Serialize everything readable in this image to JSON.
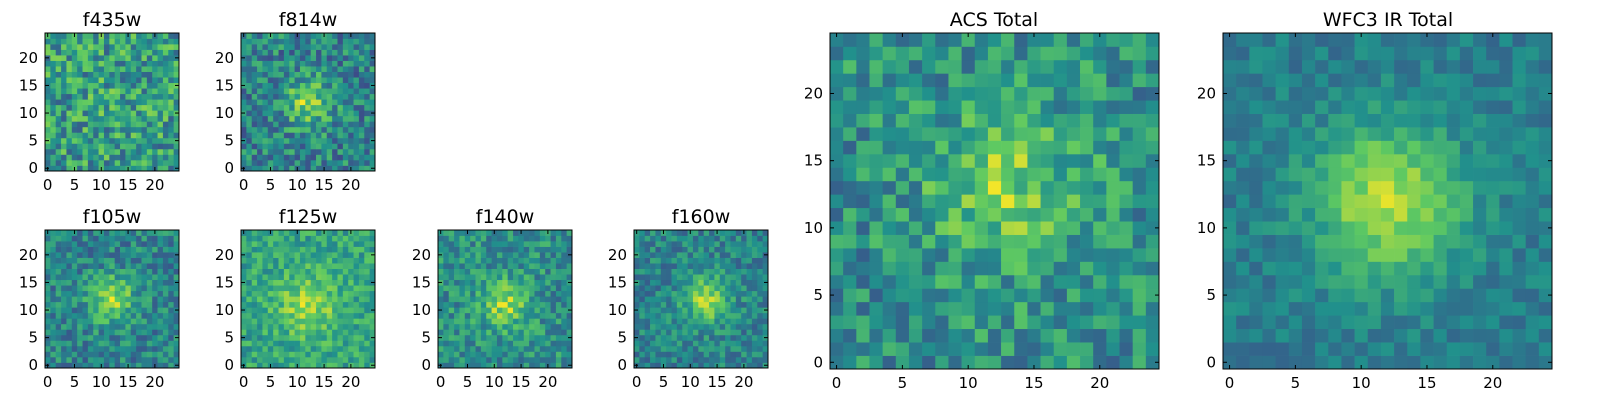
{
  "figure": {
    "background": "#ffffff"
  },
  "colormap": {
    "name": "viridis",
    "stops": [
      "#440154",
      "#3b528b",
      "#21918c",
      "#5ec962",
      "#fde725"
    ]
  },
  "chart_data": [
    {
      "type": "heatmap",
      "title": "f435w",
      "grid": [
        25,
        25
      ],
      "xlim": [
        0,
        24
      ],
      "ylim": [
        0,
        24
      ],
      "xticks": [
        0,
        5,
        10,
        15,
        20
      ],
      "yticks": [
        0,
        5,
        10,
        15,
        20
      ],
      "xtick_labels": [
        "0",
        "5",
        "10",
        "15",
        "20"
      ],
      "ytick_labels": [
        "0",
        "5",
        "10",
        "15",
        "20"
      ],
      "peak": [
        13,
        13
      ],
      "peak_strength": 0.05,
      "peak_width": 4,
      "noise": 0.55,
      "base": 0.55,
      "seed": 11
    },
    {
      "type": "heatmap",
      "title": "f814w",
      "grid": [
        25,
        25
      ],
      "xlim": [
        0,
        24
      ],
      "ylim": [
        0,
        24
      ],
      "xticks": [
        0,
        5,
        10,
        15,
        20
      ],
      "yticks": [
        0,
        5,
        10,
        15,
        20
      ],
      "xtick_labels": [
        "0",
        "5",
        "10",
        "15",
        "20"
      ],
      "ytick_labels": [
        "0",
        "5",
        "10",
        "15",
        "20"
      ],
      "peak": [
        12,
        12
      ],
      "peak_strength": 0.45,
      "peak_width": 3,
      "noise": 0.45,
      "base": 0.45,
      "seed": 23
    },
    {
      "type": "heatmap",
      "title": "f105w",
      "grid": [
        25,
        25
      ],
      "xlim": [
        0,
        24
      ],
      "ylim": [
        0,
        24
      ],
      "xticks": [
        0,
        5,
        10,
        15,
        20
      ],
      "yticks": [
        0,
        5,
        10,
        15,
        20
      ],
      "xtick_labels": [
        "0",
        "5",
        "10",
        "15",
        "20"
      ],
      "ytick_labels": [
        "0",
        "5",
        "10",
        "15",
        "20"
      ],
      "peak": [
        12,
        12
      ],
      "peak_strength": 0.45,
      "peak_width": 3,
      "noise": 0.35,
      "base": 0.45,
      "seed": 37
    },
    {
      "type": "heatmap",
      "title": "f125w",
      "grid": [
        25,
        25
      ],
      "xlim": [
        0,
        24
      ],
      "ylim": [
        0,
        24
      ],
      "xticks": [
        0,
        5,
        10,
        15,
        20
      ],
      "yticks": [
        0,
        5,
        10,
        15,
        20
      ],
      "xtick_labels": [
        "0",
        "5",
        "10",
        "15",
        "20"
      ],
      "ytick_labels": [
        "0",
        "5",
        "10",
        "15",
        "20"
      ],
      "peak": [
        12,
        11
      ],
      "peak_strength": 0.3,
      "peak_width": 4,
      "noise": 0.3,
      "base": 0.58,
      "seed": 41
    },
    {
      "type": "heatmap",
      "title": "f140w",
      "grid": [
        25,
        25
      ],
      "xlim": [
        0,
        24
      ],
      "ylim": [
        0,
        24
      ],
      "xticks": [
        0,
        5,
        10,
        15,
        20
      ],
      "yticks": [
        0,
        5,
        10,
        15,
        20
      ],
      "xtick_labels": [
        "0",
        "5",
        "10",
        "15",
        "20"
      ],
      "ytick_labels": [
        "0",
        "5",
        "10",
        "15",
        "20"
      ],
      "peak": [
        12,
        11
      ],
      "peak_strength": 0.4,
      "peak_width": 3,
      "noise": 0.35,
      "base": 0.5,
      "seed": 53
    },
    {
      "type": "heatmap",
      "title": "f160w",
      "grid": [
        25,
        25
      ],
      "xlim": [
        0,
        24
      ],
      "ylim": [
        0,
        24
      ],
      "xticks": [
        0,
        5,
        10,
        15,
        20
      ],
      "yticks": [
        0,
        5,
        10,
        15,
        20
      ],
      "xtick_labels": [
        "0",
        "5",
        "10",
        "15",
        "20"
      ],
      "ytick_labels": [
        "0",
        "5",
        "10",
        "15",
        "20"
      ],
      "peak": [
        13,
        12
      ],
      "peak_strength": 0.45,
      "peak_width": 3,
      "noise": 0.3,
      "base": 0.45,
      "seed": 67
    },
    {
      "type": "heatmap",
      "title": "ACS Total",
      "grid": [
        25,
        25
      ],
      "xlim": [
        0,
        24
      ],
      "ylim": [
        0,
        24
      ],
      "xticks": [
        0,
        5,
        10,
        15,
        20
      ],
      "yticks": [
        0,
        5,
        10,
        15,
        20
      ],
      "xtick_labels": [
        "0",
        "5",
        "10",
        "15",
        "20"
      ],
      "ytick_labels": [
        "0",
        "5",
        "10",
        "15",
        "20"
      ],
      "peak": [
        13,
        13
      ],
      "peak_strength": 0.35,
      "peak_width": 4,
      "noise": 0.4,
      "base": 0.5,
      "seed": 79
    },
    {
      "type": "heatmap",
      "title": "WFC3 IR Total",
      "grid": [
        25,
        25
      ],
      "xlim": [
        0,
        24
      ],
      "ylim": [
        0,
        24
      ],
      "xticks": [
        0,
        5,
        10,
        15,
        20
      ],
      "yticks": [
        0,
        5,
        10,
        15,
        20
      ],
      "xtick_labels": [
        "0",
        "5",
        "10",
        "15",
        "20"
      ],
      "ytick_labels": [
        "0",
        "5",
        "10",
        "15",
        "20"
      ],
      "peak": [
        12,
        12
      ],
      "peak_strength": 0.5,
      "peak_width": 4,
      "noise": 0.18,
      "base": 0.42,
      "seed": 97
    }
  ]
}
